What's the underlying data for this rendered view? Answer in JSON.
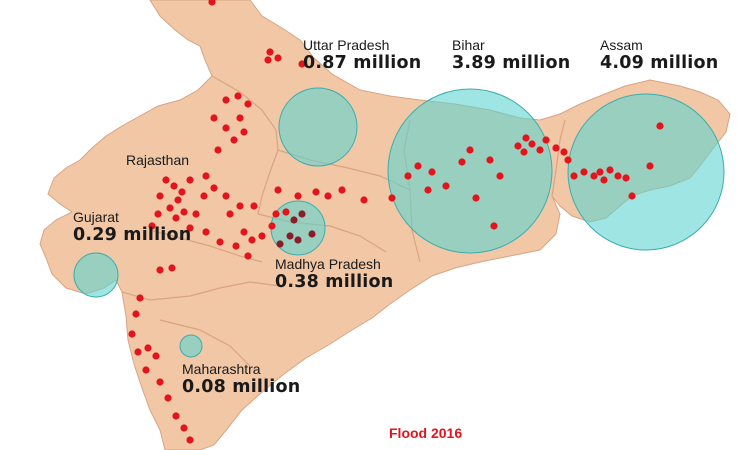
{
  "colors": {
    "land": "#f1c7a6",
    "border": "#d9a482",
    "sea": "#ffffff",
    "circle_fill": "#5fd3d0",
    "circle_stroke": "#3aaeb0",
    "dot": "#e3141c",
    "dot_dark": "#8a1d2a",
    "caption": "#e3141c",
    "text": "#1a1a1a"
  },
  "title": "Flood 2016",
  "states": [
    {
      "id": "uttar-pradesh",
      "name": "Uttar Pradesh",
      "affected_million": 0.87,
      "value_text": "0.87 million"
    },
    {
      "id": "bihar",
      "name": "Bihar",
      "affected_million": 3.89,
      "value_text": "3.89 million"
    },
    {
      "id": "assam",
      "name": "Assam",
      "affected_million": 4.09,
      "value_text": "4.09 million"
    },
    {
      "id": "rajasthan",
      "name": "Rajasthan"
    },
    {
      "id": "gujarat",
      "name": "Gujarat",
      "affected_million": 0.29,
      "value_text": "0.29 million"
    },
    {
      "id": "madhya-pradesh",
      "name": "Madhya Pradesh",
      "affected_million": 0.38,
      "value_text": "0.38 million"
    },
    {
      "id": "maharashtra",
      "name": "Maharashtra",
      "affected_million": 0.08,
      "value_text": "0.08 million"
    }
  ]
}
